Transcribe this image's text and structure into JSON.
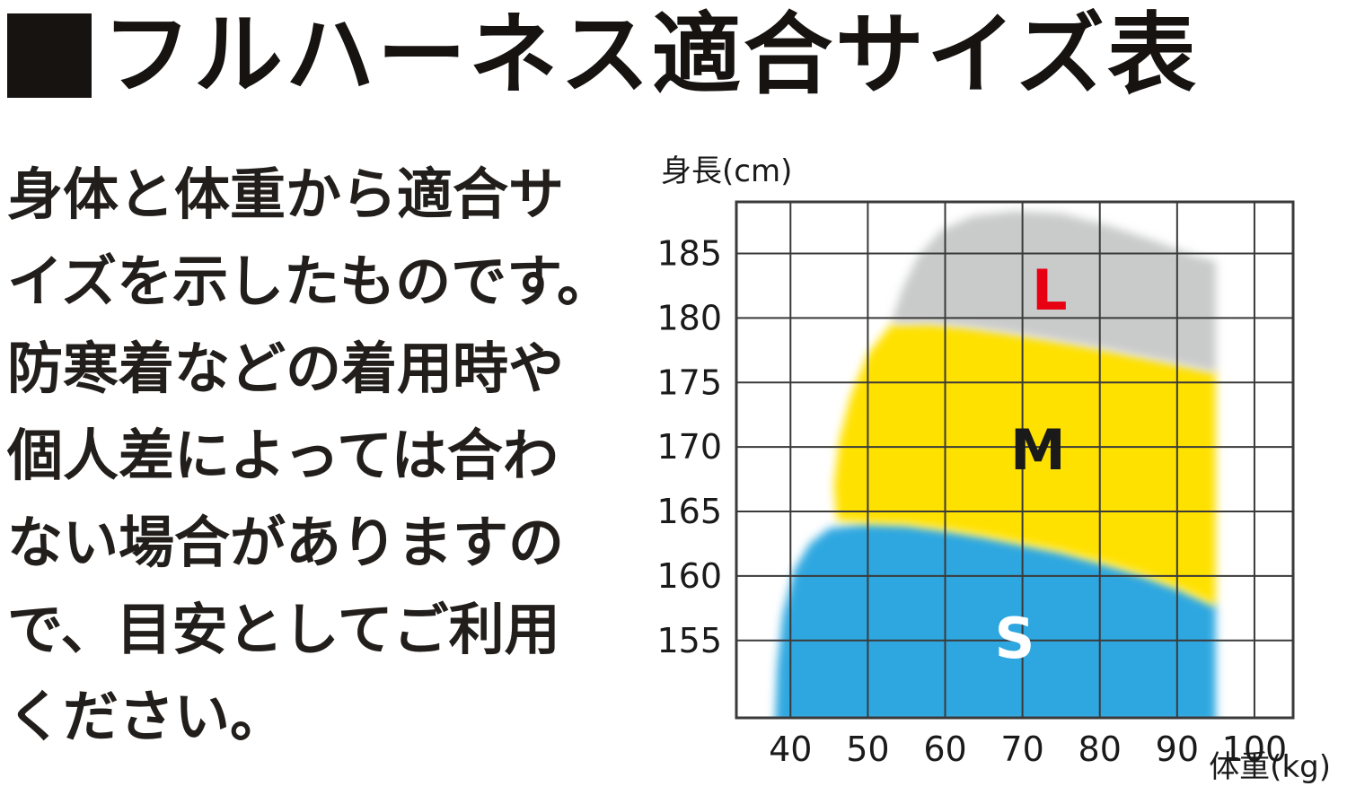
{
  "header": {
    "title": "フルハーネス適合サイズ表"
  },
  "description": {
    "full_text": "身体と体重から適合サイズを示したものです。防寒着などの着用時や個人差によっては合わない場合がありますので、目安としてご利用ください。",
    "lines": [
      "身体と体重から適合サ",
      "イズを示したものです。",
      "防寒着などの着用時や",
      "個人差によっては合わ",
      "ない場合がありますの",
      "で、目安としてご利用",
      "ください。"
    ]
  },
  "chart_data": {
    "type": "area",
    "title": "フルハーネス適合サイズ表",
    "xlabel": "体重(kg)",
    "ylabel": "身長(cm)",
    "xlim": [
      33,
      105
    ],
    "ylim": [
      149,
      189
    ],
    "xticks": [
      40,
      50,
      60,
      70,
      80,
      90,
      100
    ],
    "yticks": [
      155,
      160,
      165,
      170,
      175,
      180,
      185
    ],
    "grid": true,
    "axis_color": "#3a3a3a",
    "tick_color": "#1a1a1a",
    "regions": [
      {
        "label": "S",
        "name": "size-S",
        "fill": "#2ea7e0",
        "label_color": "#ffffff",
        "label_pos": [
          69,
          155.2
        ],
        "points": [
          [
            38,
            148.5
          ],
          [
            38.3,
            153
          ],
          [
            39,
            157
          ],
          [
            40.5,
            160.5
          ],
          [
            42.5,
            162.5
          ],
          [
            45,
            163.7
          ],
          [
            50,
            164.1
          ],
          [
            55,
            164.0
          ],
          [
            60,
            163.6
          ],
          [
            65,
            163.1
          ],
          [
            70,
            162.5
          ],
          [
            75,
            161.9
          ],
          [
            80,
            161.1
          ],
          [
            85,
            160.2
          ],
          [
            90,
            159.1
          ],
          [
            95,
            157.7
          ],
          [
            95,
            148.5
          ]
        ]
      },
      {
        "label": "M",
        "name": "size-M",
        "fill": "#ffe100",
        "label_color": "#1a1a1a",
        "label_pos": [
          72,
          169.8
        ],
        "points": [
          [
            46,
            164.3
          ],
          [
            45.6,
            167
          ],
          [
            46.3,
            170.5
          ],
          [
            47.8,
            174
          ],
          [
            50,
            177.2
          ],
          [
            53,
            179.5
          ],
          [
            58,
            179.6
          ],
          [
            63,
            179.3
          ],
          [
            68,
            178.9
          ],
          [
            73,
            178.4
          ],
          [
            78,
            177.9
          ],
          [
            83,
            177.3
          ],
          [
            88,
            176.7
          ],
          [
            95,
            175.8
          ],
          [
            95,
            157.7
          ],
          [
            90,
            159.1
          ],
          [
            85,
            160.2
          ],
          [
            80,
            161.1
          ],
          [
            75,
            161.9
          ],
          [
            70,
            162.5
          ],
          [
            65,
            163.1
          ],
          [
            60,
            163.6
          ],
          [
            55,
            164.0
          ],
          [
            50,
            164.1
          ]
        ]
      },
      {
        "label": "L",
        "name": "size-L",
        "fill": "#c9caca",
        "label_color": "#e60012",
        "label_pos": [
          73.5,
          182.2
        ],
        "points": [
          [
            53,
            179.6
          ],
          [
            54.5,
            182.3
          ],
          [
            56.5,
            184.8
          ],
          [
            59.5,
            186.8
          ],
          [
            63.5,
            187.9
          ],
          [
            69,
            188.3
          ],
          [
            75,
            188.1
          ],
          [
            81,
            187.2
          ],
          [
            87,
            186.0
          ],
          [
            92,
            184.9
          ],
          [
            95,
            184.4
          ],
          [
            95,
            175.8
          ],
          [
            88,
            176.7
          ],
          [
            83,
            177.3
          ],
          [
            78,
            177.9
          ],
          [
            73,
            178.4
          ],
          [
            68,
            178.9
          ],
          [
            63,
            179.3
          ],
          [
            58,
            179.6
          ]
        ]
      }
    ]
  }
}
